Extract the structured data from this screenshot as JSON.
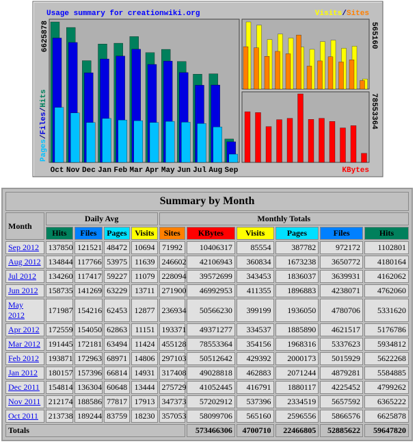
{
  "chart": {
    "title": "Usage summary for creationwiki.org",
    "months": [
      "Oct",
      "Nov",
      "Dec",
      "Jan",
      "Feb",
      "Mar",
      "Apr",
      "May",
      "Jun",
      "Jul",
      "Aug",
      "Sep"
    ],
    "left_legend": [
      {
        "text": "Pages",
        "color": "#00c0ff"
      },
      {
        "text": "/",
        "color": "#000080"
      },
      {
        "text": "Files",
        "color": "#0000e0"
      },
      {
        "text": "/",
        "color": "#000080"
      },
      {
        "text": "Hits",
        "color": "#00805c"
      }
    ],
    "right_legend": [
      {
        "text": "Visits",
        "color": "#ffff00"
      },
      {
        "text": "/",
        "color": "#000080"
      },
      {
        "text": "Sites",
        "color": "#ff8000"
      }
    ],
    "kbytes_legend": {
      "text": "KBytes",
      "color": "#ff0000"
    },
    "hits_max": 6625878,
    "visits_max": 565160,
    "kbytes_max": 78553364,
    "colors": {
      "hits": "#00805c",
      "files": "#0000e0",
      "pages": "#00c0ff",
      "visits": "#ffff00",
      "sites": "#ff8000",
      "kbytes": "#ff0000"
    }
  },
  "table": {
    "title": "Summary by Month",
    "month_header": "Month",
    "daily_header": "Daily Avg",
    "monthly_header": "Monthly Totals",
    "daily_columns": [
      "Hits",
      "Files",
      "Pages",
      "Visits"
    ],
    "monthly_columns": [
      "Sites",
      "KBytes",
      "Visits",
      "Pages",
      "Files",
      "Hits"
    ],
    "header_colors": {
      "Hits": "#00805c",
      "Files": "#0080ff",
      "Pages": "#00e0ff",
      "Visits": "#ffff00",
      "Sites": "#ff8000",
      "KBytes": "#ff0000"
    },
    "rows": [
      [
        "Sep 2012",
        137850,
        121521,
        48472,
        10694,
        71992,
        10406317,
        85554,
        387782,
        972172,
        1102801
      ],
      [
        "Aug 2012",
        134844,
        117766,
        53975,
        11639,
        246602,
        42106943,
        360834,
        1673238,
        3650772,
        4180164
      ],
      [
        "Jul 2012",
        134260,
        117417,
        59227,
        11079,
        228094,
        39572699,
        343453,
        1836037,
        3639931,
        4162062
      ],
      [
        "Jun 2012",
        158735,
        141269,
        63229,
        13711,
        271900,
        46992953,
        411355,
        1896883,
        4238071,
        4762060
      ],
      [
        "May 2012",
        171987,
        154216,
        62453,
        12877,
        236934,
        50566230,
        399199,
        1936050,
        4780706,
        5331620
      ],
      [
        "Apr 2012",
        172559,
        154050,
        62863,
        11151,
        193371,
        49371277,
        334537,
        1885890,
        4621517,
        5176786
      ],
      [
        "Mar 2012",
        191445,
        172181,
        63494,
        11424,
        455128,
        78553364,
        354156,
        1968316,
        5337623,
        5934812
      ],
      [
        "Feb 2012",
        193871,
        172963,
        68971,
        14806,
        297103,
        50512642,
        429392,
        2000173,
        5015929,
        5622268
      ],
      [
        "Jan 2012",
        180157,
        157396,
        66814,
        14931,
        317408,
        49028818,
        462883,
        2071244,
        4879281,
        5584885
      ],
      [
        "Dec 2011",
        154814,
        136304,
        60648,
        13444,
        275729,
        41052445,
        416791,
        1880117,
        4225452,
        4799262
      ],
      [
        "Nov 2011",
        212174,
        188586,
        77817,
        17913,
        347373,
        57202912,
        537396,
        2334519,
        5657592,
        6365222
      ],
      [
        "Oct 2011",
        213738,
        189244,
        83759,
        18230,
        357053,
        58099706,
        565160,
        2596556,
        5866576,
        6625878
      ]
    ],
    "totals_label": "Totals",
    "totals": [
      573466306,
      4700710,
      22466805,
      52885622,
      59647820
    ]
  }
}
